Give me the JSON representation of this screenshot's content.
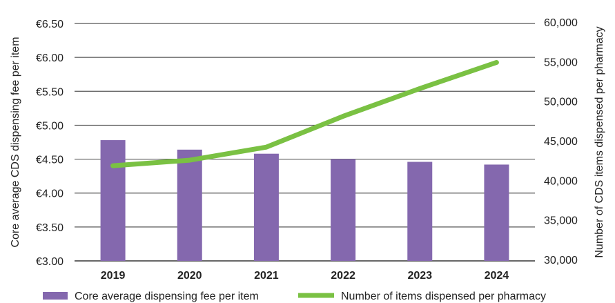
{
  "chart_data": {
    "type": "bar+line",
    "categories": [
      "2019",
      "2020",
      "2021",
      "2022",
      "2023",
      "2024"
    ],
    "series": [
      {
        "name": "Core average dispensing fee per item",
        "type": "bar",
        "axis": "left",
        "color": "#8468ae",
        "values": [
          4.78,
          4.64,
          4.58,
          4.5,
          4.46,
          4.42
        ]
      },
      {
        "name": "Number of items dispensed per pharmacy",
        "type": "line",
        "axis": "right",
        "color": "#7ac143",
        "values": [
          41850,
          42550,
          44200,
          48100,
          51600,
          54900
        ]
      }
    ],
    "ylabel": "Core average CDS dispensing fee per item",
    "y2label": "Number of CDS items dispensed per pharmacy",
    "ylim": [
      3.0,
      6.5
    ],
    "y2lim": [
      30000,
      60000
    ],
    "yticks": [
      "€3.00",
      "€3.50",
      "€4.00",
      "€4.50",
      "€5.00",
      "€5.50",
      "€6.00",
      "€6.50"
    ],
    "y2ticks": [
      "30,000",
      "35,000",
      "40,000",
      "45,000",
      "50,000",
      "55,000",
      "60,000"
    ],
    "grid": true,
    "legend": "bottom"
  }
}
